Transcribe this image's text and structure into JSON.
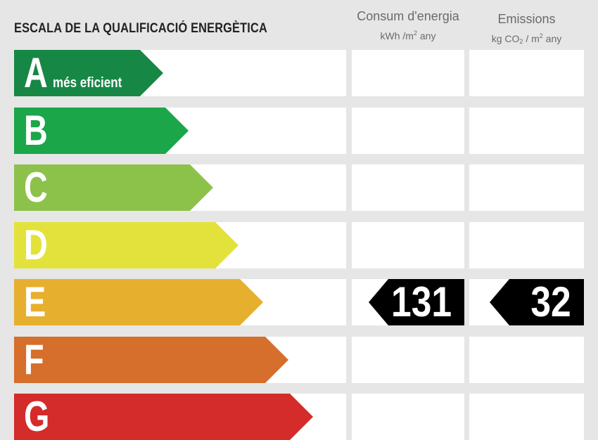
{
  "title": "ESCALA DE LA QUALIFICACIÓ ENERGÈTICA",
  "columns": {
    "consum": {
      "title": "Consum d'energia",
      "unit_prefix": "kWh /m",
      "unit_exp": "2",
      "unit_suffix": " any"
    },
    "emissions": {
      "title": "Emissions",
      "unit_a": "kg CO",
      "unit_sub": "2",
      "unit_b": " / m",
      "unit_exp": "2",
      "unit_c": " any"
    }
  },
  "ratings": [
    {
      "letter": "A",
      "sublabel": "més eficient",
      "color": "#178746"
    },
    {
      "letter": "B",
      "sublabel": "",
      "color": "#1ba64a"
    },
    {
      "letter": "C",
      "sublabel": "",
      "color": "#8cc24a"
    },
    {
      "letter": "D",
      "sublabel": "",
      "color": "#e3e23c"
    },
    {
      "letter": "E",
      "sublabel": "",
      "color": "#e6b02e"
    },
    {
      "letter": "F",
      "sublabel": "",
      "color": "#d66e2c"
    },
    {
      "letter": "G",
      "sublabel": "",
      "color": "#d42b2b"
    }
  ],
  "current_rating": "E",
  "values": {
    "consum": "131",
    "emissions": "32"
  }
}
